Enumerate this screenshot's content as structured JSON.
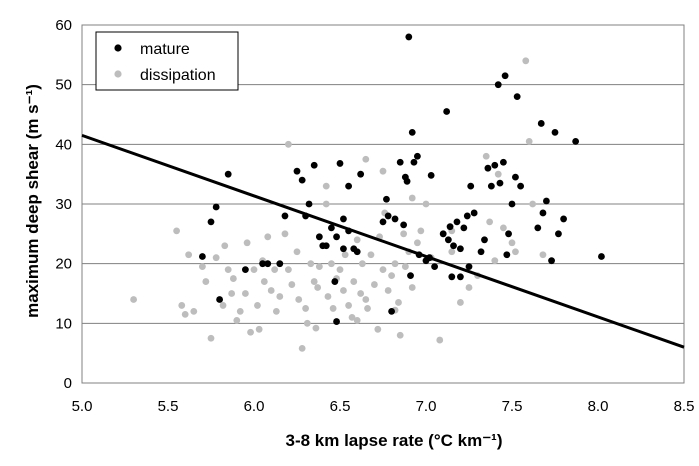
{
  "chart_data": {
    "type": "scatter",
    "xlabel": "3-8 km lapse rate (°C km⁻¹)",
    "ylabel": "maximum deep shear (m s⁻¹)",
    "xlim": [
      5.0,
      8.5
    ],
    "ylim": [
      0,
      60
    ],
    "xticks": [
      "5.0",
      "5.5",
      "6.0",
      "6.5",
      "7.0",
      "7.5",
      "8.0",
      "8.5"
    ],
    "yticks": [
      "0",
      "10",
      "20",
      "30",
      "40",
      "50",
      "60"
    ],
    "grid": "horizontal",
    "legend_position": "top-left",
    "colors": {
      "mature": "#000000",
      "dissipation": "#bdbdbd",
      "line": "#000000"
    },
    "series": [
      {
        "name": "mature",
        "points": [
          [
            5.7,
            21.2
          ],
          [
            5.75,
            27.0
          ],
          [
            5.78,
            29.5
          ],
          [
            5.8,
            14.0
          ],
          [
            5.85,
            35.0
          ],
          [
            5.95,
            19.0
          ],
          [
            6.05,
            20.0
          ],
          [
            6.08,
            20.0
          ],
          [
            6.15,
            20.0
          ],
          [
            6.18,
            28.0
          ],
          [
            6.25,
            35.5
          ],
          [
            6.28,
            34.0
          ],
          [
            6.3,
            28.0
          ],
          [
            6.32,
            30.0
          ],
          [
            6.38,
            24.5
          ],
          [
            6.4,
            23.0
          ],
          [
            6.42,
            23.0
          ],
          [
            6.45,
            26.0
          ],
          [
            6.47,
            17.0
          ],
          [
            6.48,
            24.5
          ],
          [
            6.48,
            10.3
          ],
          [
            6.5,
            36.8
          ],
          [
            6.52,
            27.5
          ],
          [
            6.55,
            33.0
          ],
          [
            6.55,
            25.5
          ],
          [
            6.58,
            22.5
          ],
          [
            6.6,
            22.0
          ],
          [
            6.62,
            35.0
          ],
          [
            6.75,
            27.0
          ],
          [
            6.77,
            30.8
          ],
          [
            6.78,
            28.0
          ],
          [
            6.8,
            12.0
          ],
          [
            6.82,
            27.5
          ],
          [
            6.85,
            37.0
          ],
          [
            6.87,
            26.5
          ],
          [
            6.88,
            34.5
          ],
          [
            6.89,
            33.8
          ],
          [
            6.9,
            58.0
          ],
          [
            6.91,
            18.0
          ],
          [
            6.92,
            42.0
          ],
          [
            6.93,
            37.0
          ],
          [
            6.95,
            38.0
          ],
          [
            6.96,
            21.5
          ],
          [
            7.0,
            20.5
          ],
          [
            7.02,
            21.0
          ],
          [
            7.03,
            34.8
          ],
          [
            7.05,
            19.5
          ],
          [
            7.1,
            25.0
          ],
          [
            7.12,
            45.5
          ],
          [
            7.13,
            24.0
          ],
          [
            7.14,
            26.2
          ],
          [
            7.16,
            23.0
          ],
          [
            7.18,
            27.0
          ],
          [
            7.2,
            22.5
          ],
          [
            7.22,
            26.0
          ],
          [
            7.24,
            28.0
          ],
          [
            7.25,
            19.5
          ],
          [
            7.26,
            33.0
          ],
          [
            7.28,
            28.5
          ],
          [
            7.32,
            22.0
          ],
          [
            7.34,
            24.0
          ],
          [
            7.36,
            36.0
          ],
          [
            7.38,
            33.0
          ],
          [
            7.4,
            36.5
          ],
          [
            7.42,
            50.0
          ],
          [
            7.43,
            33.5
          ],
          [
            7.45,
            37.0
          ],
          [
            7.46,
            51.5
          ],
          [
            7.47,
            21.5
          ],
          [
            7.48,
            25.0
          ],
          [
            7.5,
            30.0
          ],
          [
            7.52,
            34.5
          ],
          [
            7.53,
            48.0
          ],
          [
            7.55,
            33.0
          ],
          [
            7.65,
            26.0
          ],
          [
            7.67,
            43.5
          ],
          [
            7.7,
            30.5
          ],
          [
            7.73,
            20.5
          ],
          [
            7.75,
            42.0
          ],
          [
            7.77,
            25.0
          ],
          [
            7.8,
            27.5
          ],
          [
            7.87,
            40.5
          ],
          [
            8.02,
            21.2
          ],
          [
            7.15,
            17.8
          ],
          [
            7.2,
            17.8
          ],
          [
            6.35,
            36.5
          ],
          [
            6.52,
            22.5
          ],
          [
            7.68,
            28.5
          ]
        ]
      },
      {
        "name": "dissipation",
        "points": [
          [
            5.3,
            14.0
          ],
          [
            5.55,
            25.5
          ],
          [
            5.58,
            13.0
          ],
          [
            5.6,
            11.5
          ],
          [
            5.62,
            21.5
          ],
          [
            5.65,
            12.0
          ],
          [
            5.7,
            19.5
          ],
          [
            5.72,
            17.0
          ],
          [
            5.75,
            7.5
          ],
          [
            5.78,
            21.0
          ],
          [
            5.82,
            13.0
          ],
          [
            5.83,
            23.0
          ],
          [
            5.85,
            19.0
          ],
          [
            5.87,
            15.0
          ],
          [
            5.88,
            17.5
          ],
          [
            5.9,
            10.5
          ],
          [
            5.92,
            12.0
          ],
          [
            5.95,
            15.0
          ],
          [
            5.98,
            8.5
          ],
          [
            6.0,
            19.0
          ],
          [
            6.02,
            13.0
          ],
          [
            6.03,
            9.0
          ],
          [
            6.05,
            20.5
          ],
          [
            6.06,
            17.0
          ],
          [
            6.08,
            24.5
          ],
          [
            6.1,
            15.5
          ],
          [
            6.12,
            19.0
          ],
          [
            6.15,
            14.5
          ],
          [
            6.18,
            25.0
          ],
          [
            6.2,
            19.0
          ],
          [
            6.22,
            16.5
          ],
          [
            6.25,
            22.0
          ],
          [
            6.26,
            14.0
          ],
          [
            6.28,
            5.8
          ],
          [
            6.3,
            12.5
          ],
          [
            6.31,
            10.0
          ],
          [
            6.33,
            20.0
          ],
          [
            6.35,
            17.0
          ],
          [
            6.37,
            16.0
          ],
          [
            6.38,
            19.5
          ],
          [
            6.4,
            23.0
          ],
          [
            6.42,
            30.0
          ],
          [
            6.43,
            14.5
          ],
          [
            6.45,
            20.0
          ],
          [
            6.46,
            12.5
          ],
          [
            6.48,
            17.5
          ],
          [
            6.5,
            19.0
          ],
          [
            6.52,
            15.5
          ],
          [
            6.53,
            21.5
          ],
          [
            6.55,
            13.0
          ],
          [
            6.57,
            11.0
          ],
          [
            6.58,
            17.0
          ],
          [
            6.6,
            24.0
          ],
          [
            6.62,
            15.0
          ],
          [
            6.63,
            20.0
          ],
          [
            6.65,
            14.0
          ],
          [
            6.66,
            12.5
          ],
          [
            6.68,
            21.5
          ],
          [
            6.7,
            16.5
          ],
          [
            6.72,
            9.0
          ],
          [
            6.73,
            24.5
          ],
          [
            6.75,
            19.0
          ],
          [
            6.76,
            28.5
          ],
          [
            6.78,
            15.5
          ],
          [
            6.8,
            18.0
          ],
          [
            6.82,
            20.0
          ],
          [
            6.84,
            13.5
          ],
          [
            6.85,
            8.0
          ],
          [
            6.87,
            25.0
          ],
          [
            6.88,
            19.5
          ],
          [
            6.9,
            22.0
          ],
          [
            6.92,
            16.0
          ],
          [
            6.95,
            23.5
          ],
          [
            6.97,
            25.5
          ],
          [
            7.0,
            30.0
          ],
          [
            7.03,
            21.0
          ],
          [
            7.08,
            7.2
          ],
          [
            7.1,
            25.0
          ],
          [
            7.15,
            22.0
          ],
          [
            7.2,
            13.5
          ],
          [
            7.25,
            16.0
          ],
          [
            7.3,
            18.0
          ],
          [
            7.35,
            38.0
          ],
          [
            7.37,
            27.0
          ],
          [
            7.4,
            20.5
          ],
          [
            7.42,
            35.0
          ],
          [
            7.45,
            26.0
          ],
          [
            7.5,
            23.5
          ],
          [
            7.52,
            22.0
          ],
          [
            7.58,
            54.0
          ],
          [
            7.6,
            40.5
          ],
          [
            7.62,
            30.0
          ],
          [
            7.68,
            21.5
          ],
          [
            6.2,
            40.0
          ],
          [
            6.42,
            33.0
          ],
          [
            6.65,
            37.5
          ],
          [
            6.75,
            35.5
          ],
          [
            5.96,
            23.5
          ],
          [
            6.13,
            12.0
          ],
          [
            6.36,
            9.2
          ],
          [
            6.6,
            10.5
          ],
          [
            6.82,
            12.2
          ],
          [
            6.92,
            31.0
          ],
          [
            7.15,
            25.5
          ]
        ]
      }
    ],
    "trend_line": {
      "x": [
        5.0,
        8.5
      ],
      "y": [
        41.5,
        6.0
      ]
    }
  }
}
